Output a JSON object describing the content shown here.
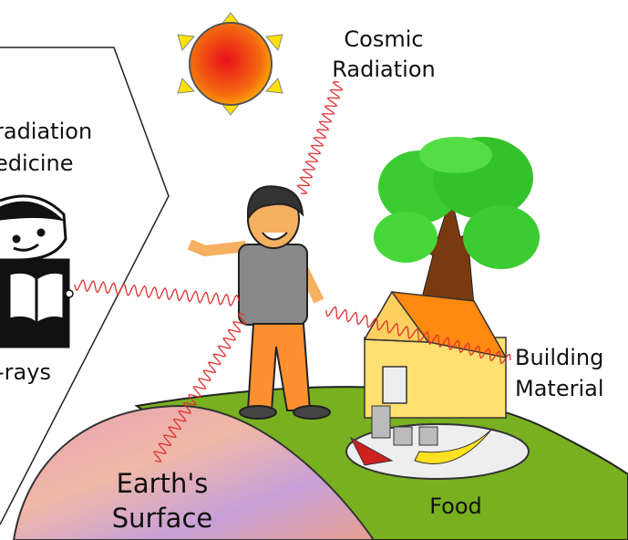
{
  "labels": {
    "cosmic_radiation": [
      "Cosmic",
      "Radiation"
    ],
    "medical": [
      "radiation",
      "edicine"
    ],
    "xrays": "-rays",
    "building_material": [
      "Building",
      "Material"
    ],
    "earths_surface": [
      "Earth's",
      "Surface"
    ],
    "food": "Food"
  }
}
